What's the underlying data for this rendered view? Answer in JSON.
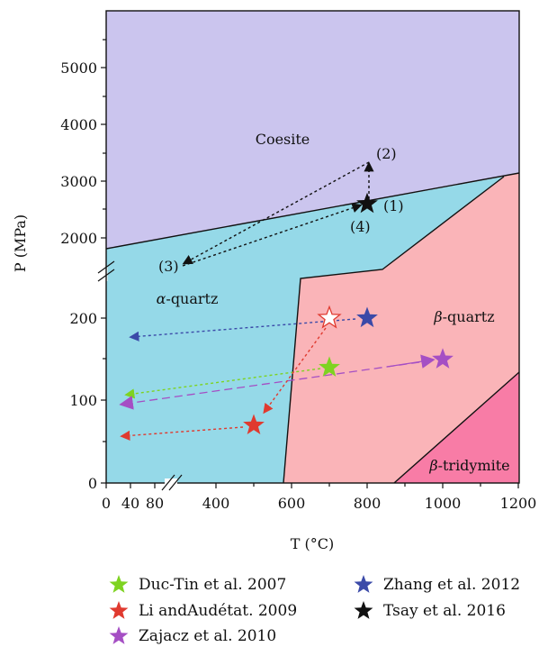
{
  "chart_data": {
    "type": "phase-diagram",
    "title": "",
    "xlabel": "T (°C)",
    "ylabel": "P (MPa)",
    "x_ticks": [
      "0",
      "40",
      "80",
      "400",
      "600",
      "800",
      "1000",
      "1200"
    ],
    "y_ticks_lower": [
      "0",
      "100",
      "200"
    ],
    "y_ticks_upper": [
      "2000",
      "3000",
      "4000",
      "5000"
    ],
    "axis_break": "broken axes (split between 300 and 1500 MPa and between 80 and 250 °C)",
    "phases": [
      {
        "name": "Coesite",
        "color": "#cbc5ee"
      },
      {
        "name": "α-quartz",
        "prefix": "α",
        "suffix": "-quartz",
        "color": "#95d9e8"
      },
      {
        "name": "β-quartz",
        "prefix": "β",
        "suffix": "-quartz",
        "color": "#fab4b8"
      },
      {
        "name": "β-tridymite",
        "prefix": "β",
        "suffix": "-tridymite",
        "color": "#f87ca6"
      }
    ],
    "path_labels": [
      "(1)",
      "(2)",
      "(3)",
      "(4)"
    ],
    "legend": [
      {
        "name": "Duc-Tin et al. 2007",
        "color": "#7ed321"
      },
      {
        "name": "Zhang et al. 2012",
        "color": "#3b4aa8"
      },
      {
        "name": "Li andAudétat. 2009",
        "color": "#e03a2f"
      },
      {
        "name": "Tsay et al. 2016",
        "color": "#111111"
      },
      {
        "name": "Zajacz et al. 2010",
        "color": "#a54fc4"
      }
    ],
    "data_points": [
      {
        "study": "Duc-Tin et al. 2007",
        "T": 700,
        "P": 140,
        "color": "#7ed321"
      },
      {
        "study": "Zhang et al. 2012",
        "T": 800,
        "P": 200,
        "color": "#3b4aa8"
      },
      {
        "study": "Li andAudétat. 2009",
        "T": 500,
        "P": 70,
        "color": "#e03a2f"
      },
      {
        "study": "Li andAudétat. 2009",
        "T": 700,
        "P": 200,
        "color": "#e03a2f",
        "hollow": true
      },
      {
        "study": "Zajacz et al. 2010",
        "T": 1000,
        "P": 150,
        "color": "#a54fc4"
      },
      {
        "study": "Tsay et al. 2016",
        "T": 800,
        "P": 2600,
        "color": "#111111"
      }
    ]
  }
}
